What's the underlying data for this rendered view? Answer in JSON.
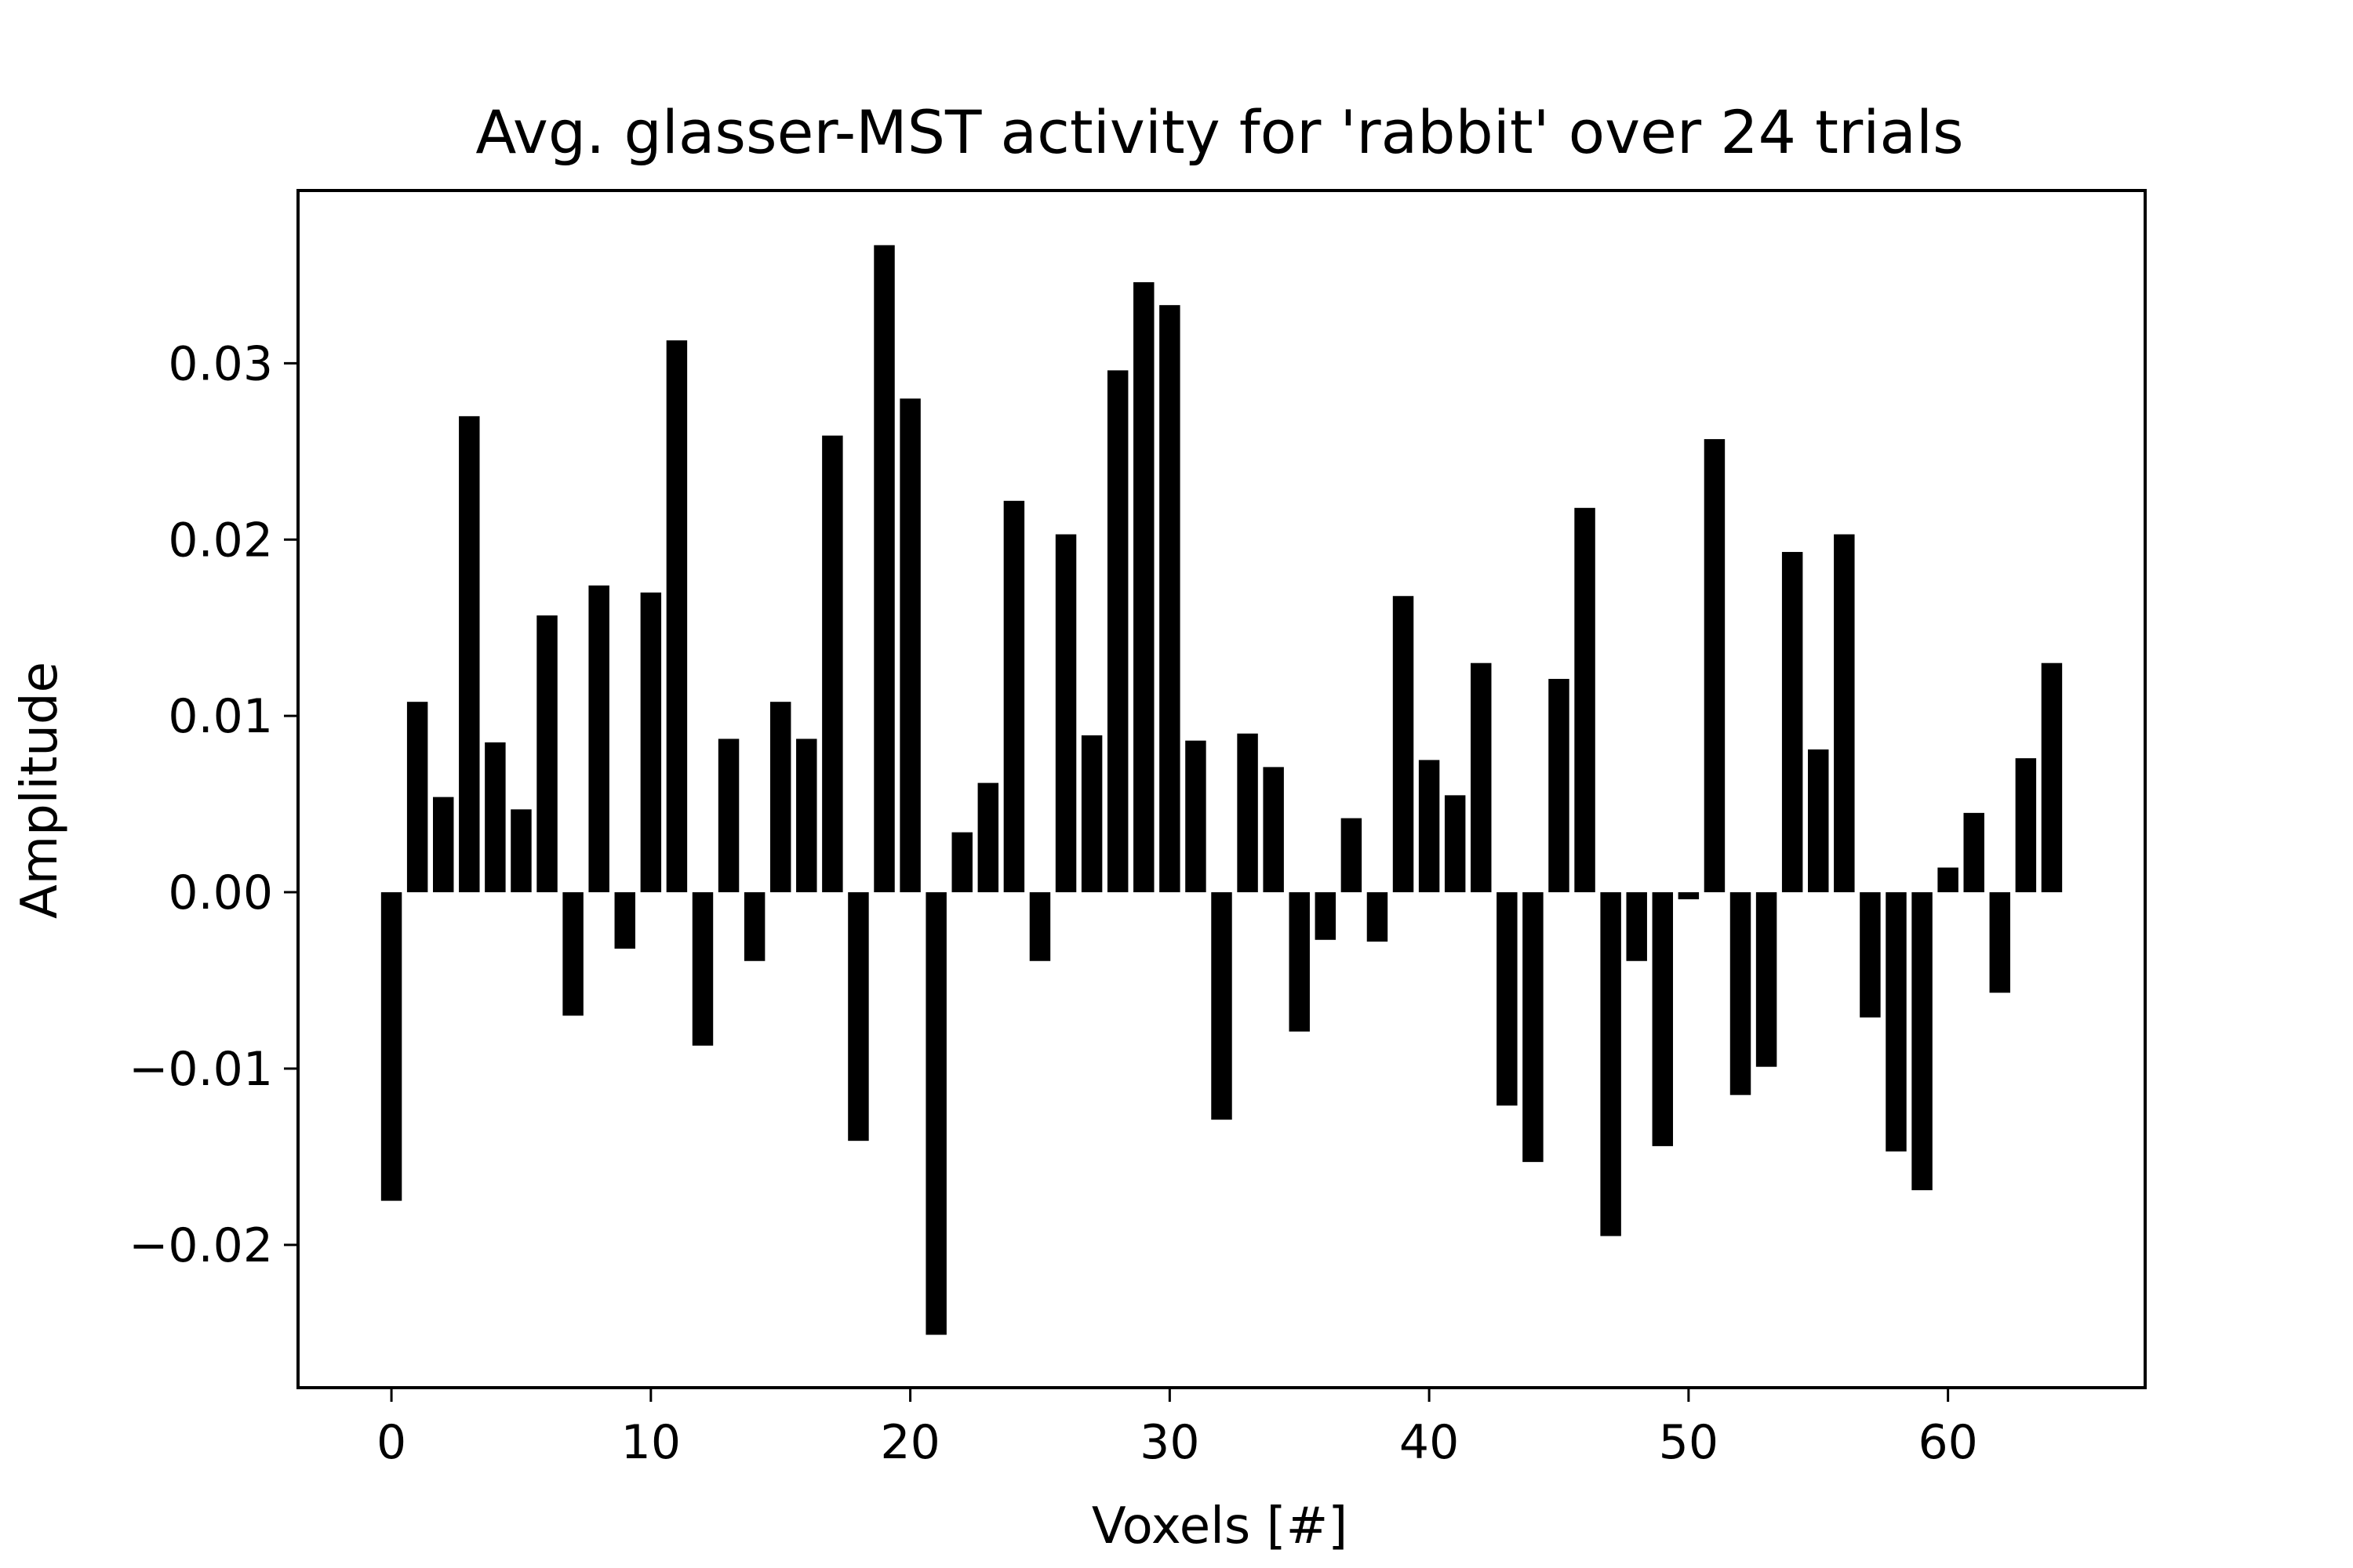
{
  "chart_data": {
    "type": "bar",
    "title": "Avg. glasser-MST activity for 'rabbit' over 24 trials",
    "xlabel": "Voxels [#]",
    "ylabel": "Amplitude",
    "x": [
      0,
      1,
      2,
      3,
      4,
      5,
      6,
      7,
      8,
      9,
      10,
      11,
      12,
      13,
      14,
      15,
      16,
      17,
      18,
      19,
      20,
      21,
      22,
      23,
      24,
      25,
      26,
      27,
      28,
      29,
      30,
      31,
      32,
      33,
      34,
      35,
      36,
      37,
      38,
      39,
      40,
      41,
      42,
      43,
      44,
      45,
      46,
      47,
      48,
      49,
      50,
      51,
      52,
      53,
      54,
      55,
      56,
      57,
      58,
      59,
      60,
      61,
      62,
      63,
      64
    ],
    "values": [
      -0.0175,
      0.0108,
      0.0054,
      0.027,
      0.0085,
      0.0047,
      0.0157,
      -0.007,
      0.0174,
      -0.0032,
      0.017,
      0.0313,
      -0.0087,
      0.0087,
      -0.0039,
      0.0108,
      0.0087,
      0.0259,
      -0.0141,
      0.0367,
      0.028,
      -0.0251,
      0.0034,
      0.0062,
      0.0222,
      -0.0039,
      0.0203,
      0.0089,
      0.0296,
      0.0346,
      0.0333,
      0.0086,
      -0.0129,
      0.009,
      0.0071,
      -0.0079,
      -0.0027,
      0.0042,
      -0.0028,
      0.0168,
      0.0075,
      0.0055,
      0.013,
      -0.0121,
      -0.0153,
      0.0121,
      0.0218,
      -0.0195,
      -0.0039,
      -0.0144,
      -0.0004,
      0.0257,
      -0.0115,
      -0.0099,
      0.0193,
      0.0081,
      0.0203,
      -0.0071,
      -0.0147,
      -0.0169,
      0.0014,
      0.0045,
      -0.0057,
      0.0076,
      0.013
    ],
    "xlim": [
      -3.6,
      67.6
    ],
    "ylim": [
      -0.0281,
      0.0398
    ],
    "xticks": [
      0,
      10,
      20,
      30,
      40,
      50,
      60
    ],
    "xtick_labels": [
      "0",
      "10",
      "20",
      "30",
      "40",
      "50",
      "60"
    ],
    "yticks": [
      -0.02,
      -0.01,
      0.0,
      0.01,
      0.02,
      0.03
    ],
    "ytick_labels": [
      "−0.02",
      "−0.01",
      "0.00",
      "0.01",
      "0.02",
      "0.03"
    ],
    "bar_width": 0.8,
    "bar_color": "#000000",
    "grid": false,
    "legend": "none"
  }
}
